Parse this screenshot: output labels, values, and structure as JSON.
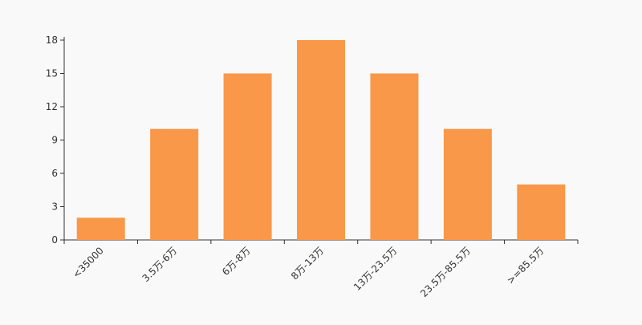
{
  "chart_data": {
    "type": "bar",
    "categories": [
      "<35000",
      "3.5万-6万",
      "6万-8万",
      "8万-13万",
      "13万-23.5万",
      "23.5万-85.5万",
      ">=85.5万"
    ],
    "values": [
      2,
      10,
      15,
      18,
      15,
      10,
      5
    ],
    "ylim": [
      0,
      18
    ],
    "yticks": [
      0,
      3,
      6,
      9,
      12,
      15,
      18
    ],
    "grid": false,
    "bar_color": "#f89848",
    "background": "#f9f9f9",
    "axis_color": "#333333"
  }
}
